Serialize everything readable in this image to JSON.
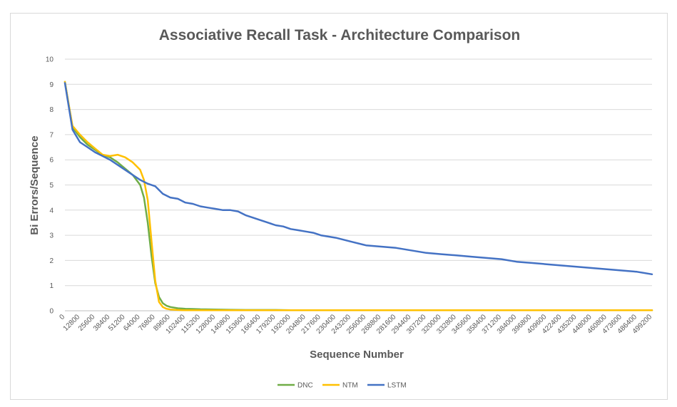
{
  "chart_data": {
    "type": "line",
    "title": "Associative Recall Task - Architecture Comparison",
    "xlabel": "Sequence Number",
    "ylabel": "Bi Errors/Sequence",
    "ylim": [
      0,
      10
    ],
    "y_ticks": [
      "0",
      "1",
      "2",
      "3",
      "4",
      "5",
      "6",
      "7",
      "8",
      "9",
      "10"
    ],
    "x_ticks": [
      "0",
      "12800",
      "25600",
      "38400",
      "51200",
      "64000",
      "76800",
      "89600",
      "102400",
      "115200",
      "128000",
      "140800",
      "153600",
      "166400",
      "179200",
      "192000",
      "204800",
      "217600",
      "230400",
      "243200",
      "256000",
      "268800",
      "281600",
      "294400",
      "307200",
      "320000",
      "332800",
      "345600",
      "358400",
      "371200",
      "384000",
      "396800",
      "409600",
      "422400",
      "435200",
      "448000",
      "460800",
      "473600",
      "486400",
      "499200"
    ],
    "grid": true,
    "legend_position": "bottom",
    "series": [
      {
        "name": "DNC",
        "color": "#70ad47",
        "x": [
          0,
          3200,
          6400,
          12800,
          19200,
          25600,
          32000,
          38400,
          44800,
          51200,
          57600,
          64000,
          67200,
          70400,
          73600,
          76800,
          80000,
          83200,
          86400,
          89600,
          96000,
          102400,
          108800,
          115200,
          128000,
          140800,
          153600,
          166400,
          179200,
          192000,
          204800,
          230400,
          256000,
          307200,
          358400,
          409600,
          460800,
          499200
        ],
        "values": [
          9.1,
          8.2,
          7.3,
          6.9,
          6.6,
          6.4,
          6.2,
          6.1,
          5.9,
          5.65,
          5.4,
          5.0,
          4.5,
          3.5,
          2.2,
          1.1,
          0.55,
          0.3,
          0.2,
          0.15,
          0.1,
          0.08,
          0.07,
          0.06,
          0.05,
          0.04,
          0.03,
          0.03,
          0.03,
          0.02,
          0.02,
          0.02,
          0.02,
          0.02,
          0.02,
          0.02,
          0.02,
          0.02
        ]
      },
      {
        "name": "NTM",
        "color": "#ffc000",
        "x": [
          0,
          3200,
          6400,
          12800,
          19200,
          25600,
          32000,
          38400,
          44800,
          51200,
          57600,
          64000,
          67200,
          70400,
          73600,
          76800,
          80000,
          83200,
          86400,
          89600,
          96000,
          102400,
          115200,
          128000,
          153600,
          192000,
          256000,
          307200,
          358400,
          409600,
          460800,
          499200
        ],
        "values": [
          9.1,
          8.2,
          7.35,
          7.0,
          6.7,
          6.45,
          6.2,
          6.15,
          6.2,
          6.1,
          5.9,
          5.6,
          5.2,
          4.4,
          2.8,
          1.2,
          0.35,
          0.15,
          0.08,
          0.05,
          0.03,
          0.02,
          0.02,
          0.02,
          0.02,
          0.02,
          0.02,
          0.02,
          0.02,
          0.02,
          0.02,
          0.02
        ]
      },
      {
        "name": "LSTM",
        "color": "#4472c4",
        "x": [
          0,
          6400,
          12800,
          19200,
          25600,
          32000,
          38400,
          44800,
          51200,
          57600,
          64000,
          70400,
          76800,
          83200,
          89600,
          96000,
          102400,
          108800,
          115200,
          121600,
          128000,
          134400,
          140800,
          147200,
          153600,
          160000,
          166400,
          172800,
          179200,
          185600,
          192000,
          198400,
          204800,
          211200,
          217600,
          230400,
          243200,
          256000,
          268800,
          281600,
          294400,
          307200,
          320000,
          332800,
          345600,
          358400,
          371200,
          384000,
          396800,
          409600,
          422400,
          435200,
          448000,
          460800,
          473600,
          486400,
          499200
        ],
        "values": [
          9.05,
          7.2,
          6.7,
          6.5,
          6.3,
          6.15,
          6.0,
          5.8,
          5.6,
          5.4,
          5.2,
          5.05,
          4.95,
          4.65,
          4.5,
          4.45,
          4.3,
          4.25,
          4.15,
          4.1,
          4.05,
          4.0,
          4.0,
          3.95,
          3.8,
          3.7,
          3.6,
          3.5,
          3.4,
          3.35,
          3.25,
          3.2,
          3.15,
          3.1,
          3.0,
          2.9,
          2.75,
          2.6,
          2.55,
          2.5,
          2.4,
          2.3,
          2.25,
          2.2,
          2.15,
          2.1,
          2.05,
          1.95,
          1.9,
          1.85,
          1.8,
          1.75,
          1.7,
          1.65,
          1.6,
          1.55,
          1.45
        ]
      }
    ]
  }
}
